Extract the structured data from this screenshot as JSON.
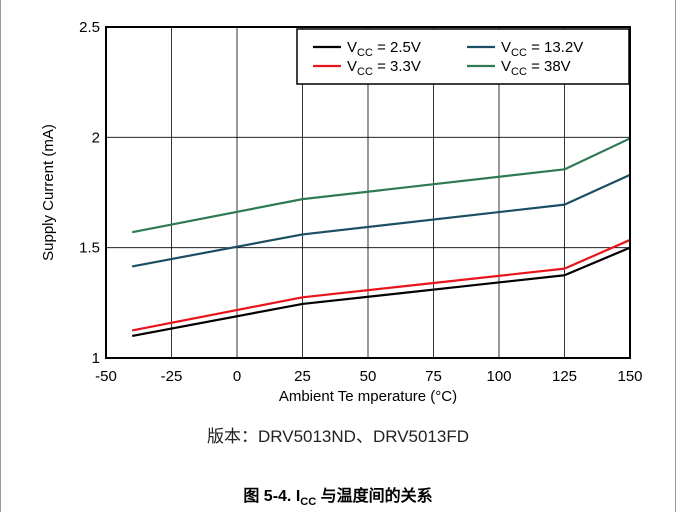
{
  "version_note": "版本：DRV5013ND、DRV5013FD",
  "caption": {
    "prefix": "图 5-4. I",
    "subscript": "CC",
    "suffix": " 与温度间的关系"
  },
  "chart_data": {
    "type": "line",
    "xlabel": "Ambient Te mperature (°C)",
    "ylabel": "Supply Current (mA)",
    "xlim": [
      -50,
      150
    ],
    "ylim": [
      1,
      2.5
    ],
    "x_ticks": [
      "-50",
      "-25",
      "0",
      "25",
      "50",
      "75",
      "100",
      "125",
      "150"
    ],
    "x_tick_values": [
      -50,
      -25,
      0,
      25,
      50,
      75,
      100,
      125,
      150
    ],
    "y_ticks": [
      "1",
      "1.5",
      "2",
      "2.5"
    ],
    "y_tick_values": [
      1,
      1.5,
      2,
      2.5
    ],
    "grid": true,
    "legend_position": "top-right",
    "series": [
      {
        "name": "V_CC = 2.5V",
        "label_main": "V",
        "label_sub": "CC",
        "label_rest": " = 2.5V",
        "color": "#000000",
        "x": [
          -40,
          25,
          125,
          150
        ],
        "values": [
          1.1,
          1.245,
          1.375,
          1.5
        ]
      },
      {
        "name": "V_CC = 3.3V",
        "label_main": "V",
        "label_sub": "CC",
        "label_rest": " = 3.3V",
        "color": "#e8141b",
        "x": [
          -40,
          25,
          125,
          150
        ],
        "values": [
          1.125,
          1.275,
          1.405,
          1.535
        ]
      },
      {
        "name": "V_CC = 13.2V",
        "label_main": "V",
        "label_sub": "CC",
        "label_rest": " = 13.2V",
        "color": "#1c4e63",
        "x": [
          -40,
          25,
          125,
          150
        ],
        "values": [
          1.415,
          1.56,
          1.695,
          1.83
        ]
      },
      {
        "name": "V_CC = 38V",
        "label_main": "V",
        "label_sub": "CC",
        "label_rest": " = 38V",
        "color": "#2f7a52",
        "x": [
          -40,
          25,
          125,
          150
        ],
        "values": [
          1.57,
          1.72,
          1.855,
          1.995
        ]
      }
    ]
  }
}
